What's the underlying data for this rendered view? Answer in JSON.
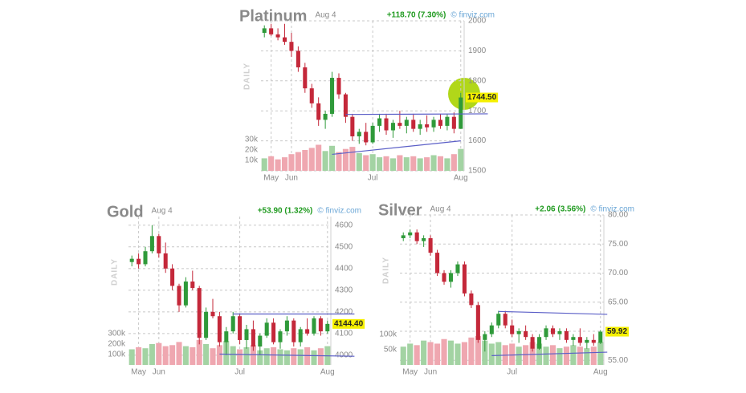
{
  "chart_data": [
    {
      "type": "candlestick",
      "title": "Platinum",
      "date": "Aug 4",
      "change": "+118.70 (7.30%)",
      "source": "© finviz.com",
      "axis_label": "DAILY",
      "last_price": {
        "value": 1744.5,
        "label": "1744.50"
      },
      "categories": [
        null,
        "May",
        null,
        null,
        "Jun",
        null,
        null,
        null,
        null,
        null,
        null,
        null,
        null,
        null,
        null,
        null,
        "Jul",
        null,
        null,
        null,
        null,
        null,
        null,
        null,
        null,
        null,
        null,
        null,
        null,
        "Aug"
      ],
      "open": [
        1960,
        1975,
        1955,
        1945,
        1930,
        1900,
        1845,
        1775,
        1725,
        1670,
        1690,
        1810,
        1755,
        1680,
        1615,
        1630,
        1595,
        1650,
        1675,
        1635,
        1660,
        1650,
        1670,
        1640,
        1655,
        1645,
        1670,
        1650,
        1680,
        1640
      ],
      "high": [
        1985,
        1990,
        1975,
        1990,
        1960,
        1915,
        1860,
        1790,
        1745,
        1700,
        1830,
        1825,
        1760,
        1690,
        1640,
        1660,
        1660,
        1690,
        1690,
        1670,
        1700,
        1680,
        1690,
        1670,
        1685,
        1680,
        1690,
        1690,
        1695,
        1760
      ],
      "low": [
        1945,
        1950,
        1935,
        1920,
        1880,
        1830,
        1760,
        1710,
        1650,
        1640,
        1680,
        1740,
        1660,
        1600,
        1590,
        1585,
        1590,
        1630,
        1620,
        1610,
        1640,
        1625,
        1630,
        1620,
        1630,
        1630,
        1640,
        1635,
        1625,
        1640
      ],
      "close": [
        1975,
        1955,
        1945,
        1930,
        1900,
        1845,
        1775,
        1725,
        1670,
        1690,
        1810,
        1755,
        1680,
        1615,
        1630,
        1595,
        1650,
        1675,
        1635,
        1660,
        1650,
        1670,
        1640,
        1655,
        1645,
        1670,
        1650,
        1680,
        1640,
        1744.5
      ],
      "volume": [
        12000,
        14000,
        11000,
        13000,
        16000,
        18000,
        20000,
        22000,
        25000,
        19000,
        24000,
        18000,
        21000,
        23000,
        17000,
        15000,
        16000,
        13000,
        14000,
        12000,
        15000,
        13000,
        14000,
        12000,
        13000,
        15000,
        14000,
        12000,
        16000,
        21000
      ],
      "ylim": [
        1500,
        2000
      ],
      "yticks": [
        1500,
        1600,
        1700,
        1800,
        1900,
        2000
      ],
      "vlim": [
        0,
        40000
      ],
      "vticks": [
        {
          "value": 10000,
          "label": "10k"
        },
        {
          "value": 20000,
          "label": "20k"
        },
        {
          "value": 30000,
          "label": "30k"
        }
      ],
      "trendlines": [
        {
          "x": [
            12,
            33
          ],
          "y": [
            1688,
            1690
          ]
        },
        {
          "x": [
            10,
            29
          ],
          "y": [
            1555,
            1600
          ]
        }
      ],
      "up_color": "#2f9a3a",
      "down_color": "#c4283a",
      "volume_up_color": "#a3d3a3",
      "volume_down_color": "#efa7b0",
      "trendline_color": "#5b5fc7",
      "grid": true
    },
    {
      "type": "candlestick",
      "title": "Gold",
      "date": "Aug 4",
      "change": "+53.90 (1.32%)",
      "source": "© finviz.com",
      "axis_label": "DAILY",
      "last_price": {
        "value": 4144.4,
        "label": "4144.40"
      },
      "categories": [
        null,
        "May",
        null,
        null,
        "Jun",
        null,
        null,
        null,
        null,
        null,
        null,
        null,
        null,
        null,
        null,
        null,
        "Jul",
        null,
        null,
        null,
        null,
        null,
        null,
        null,
        null,
        null,
        null,
        null,
        null,
        "Aug"
      ],
      "open": [
        4430,
        4445,
        4420,
        4480,
        4550,
        4470,
        4400,
        4320,
        4230,
        4340,
        4310,
        4080,
        4200,
        4180,
        4060,
        4110,
        4180,
        4070,
        4120,
        4040,
        4090,
        4150,
        4060,
        4110,
        4160,
        4060,
        4120,
        4100,
        4170,
        4110
      ],
      "high": [
        4460,
        4470,
        4500,
        4600,
        4560,
        4520,
        4420,
        4330,
        4360,
        4390,
        4320,
        4220,
        4260,
        4200,
        4130,
        4200,
        4190,
        4140,
        4160,
        4100,
        4170,
        4170,
        4120,
        4180,
        4170,
        4130,
        4170,
        4180,
        4180,
        4160
      ],
      "low": [
        4410,
        4400,
        4410,
        4470,
        4450,
        4380,
        4300,
        4200,
        4220,
        4300,
        4050,
        4070,
        4170,
        4040,
        4000,
        4100,
        4050,
        4030,
        4020,
        4000,
        4080,
        4050,
        4030,
        4090,
        4040,
        4040,
        4090,
        4090,
        4090,
        4100
      ],
      "close": [
        4445,
        4420,
        4480,
        4550,
        4470,
        4400,
        4320,
        4230,
        4340,
        4310,
        4080,
        4200,
        4180,
        4060,
        4110,
        4180,
        4070,
        4120,
        4040,
        4090,
        4150,
        4060,
        4110,
        4160,
        4060,
        4120,
        4100,
        4170,
        4110,
        4144.4
      ],
      "volume": [
        150000,
        170000,
        160000,
        200000,
        210000,
        180000,
        190000,
        220000,
        180000,
        170000,
        240000,
        200000,
        160000,
        190000,
        230000,
        180000,
        150000,
        170000,
        190000,
        140000,
        160000,
        170000,
        150000,
        140000,
        160000,
        150000,
        170000,
        140000,
        160000,
        180000
      ],
      "ylim": [
        3955,
        4640
      ],
      "yticks": [
        4000,
        4100,
        4200,
        4300,
        4400,
        4500,
        4600
      ],
      "vlim": [
        0,
        400000
      ],
      "vticks": [
        {
          "value": 100000,
          "label": "100k"
        },
        {
          "value": 200000,
          "label": "200k"
        },
        {
          "value": 300000,
          "label": "300k"
        }
      ],
      "trendlines": [
        {
          "x": [
            15,
            33
          ],
          "y": [
            4190,
            4190
          ]
        },
        {
          "x": [
            13,
            33
          ],
          "y": [
            4005,
            3995
          ]
        }
      ],
      "up_color": "#2f9a3a",
      "down_color": "#c4283a",
      "volume_up_color": "#a3d3a3",
      "volume_down_color": "#efa7b0",
      "trendline_color": "#5b5fc7",
      "grid": true
    },
    {
      "type": "candlestick",
      "title": "Silver",
      "date": "Aug 4",
      "change": "+2.06 (3.56%)",
      "source": "© finviz.com",
      "axis_label": "DAILY",
      "last_price": {
        "value": 59.92,
        "label": "59.92"
      },
      "categories": [
        null,
        "May",
        null,
        null,
        "Jun",
        null,
        null,
        null,
        null,
        null,
        null,
        null,
        null,
        null,
        null,
        null,
        "Jul",
        null,
        null,
        null,
        null,
        null,
        null,
        null,
        null,
        null,
        null,
        null,
        null,
        "Aug"
      ],
      "open": [
        76.0,
        76.5,
        77.0,
        75.5,
        76.0,
        73.5,
        70.0,
        68.5,
        70.0,
        71.5,
        66.5,
        64.5,
        58.5,
        59.5,
        61.0,
        63.0,
        61.0,
        59.5,
        60.0,
        59.0,
        57.0,
        59.0,
        60.5,
        59.5,
        60.0,
        58.5,
        59.0,
        58.0,
        58.5,
        58.0
      ],
      "high": [
        77.0,
        77.5,
        77.5,
        76.5,
        76.5,
        74.0,
        70.5,
        70.5,
        72.0,
        72.0,
        67.0,
        65.0,
        60.0,
        61.5,
        63.5,
        63.5,
        62.0,
        60.5,
        61.0,
        59.5,
        59.5,
        61.0,
        61.0,
        60.5,
        60.5,
        59.5,
        60.5,
        59.0,
        59.5,
        60.2
      ],
      "low": [
        75.5,
        76.0,
        75.0,
        74.5,
        73.0,
        69.5,
        68.0,
        67.5,
        69.5,
        66.0,
        64.0,
        58.0,
        56.5,
        59.0,
        60.5,
        60.5,
        59.0,
        58.0,
        58.5,
        56.5,
        56.8,
        58.5,
        59.0,
        58.5,
        58.0,
        57.5,
        57.5,
        57.0,
        57.5,
        57.8
      ],
      "close": [
        76.5,
        77.0,
        75.5,
        76.0,
        73.5,
        70.0,
        68.5,
        70.0,
        71.5,
        66.5,
        64.5,
        58.5,
        59.5,
        61.0,
        63.0,
        61.0,
        59.5,
        60.0,
        59.0,
        57.0,
        59.0,
        60.5,
        59.5,
        60.0,
        58.5,
        59.0,
        58.0,
        58.5,
        58.0,
        59.92
      ],
      "volume": [
        60000,
        70000,
        65000,
        80000,
        75000,
        70000,
        85000,
        80000,
        70000,
        75000,
        90000,
        95000,
        80000,
        70000,
        75000,
        65000,
        70000,
        60000,
        65000,
        75000,
        70000,
        60000,
        65000,
        55000,
        60000,
        65000,
        60000,
        55000,
        60000,
        75000
      ],
      "ylim": [
        54.2,
        80
      ],
      "yticks": [
        {
          "value": 55,
          "label": "55.00"
        },
        {
          "value": 60,
          "label": "60.00"
        },
        {
          "value": 65,
          "label": "65.00"
        },
        {
          "value": 70,
          "label": "70.00"
        },
        {
          "value": 75,
          "label": "75.00"
        },
        {
          "value": 80,
          "label": "80.00"
        }
      ],
      "vlim": [
        0,
        137000
      ],
      "vticks": [
        {
          "value": 50000,
          "label": "50k"
        },
        {
          "value": 100000,
          "label": "100k"
        }
      ],
      "trendlines": [
        {
          "x": [
            14,
            30
          ],
          "y": [
            63.4,
            62.9
          ]
        },
        {
          "x": [
            13,
            30
          ],
          "y": [
            55.8,
            56.4
          ]
        }
      ],
      "up_color": "#2f9a3a",
      "down_color": "#c4283a",
      "volume_up_color": "#a3d3a3",
      "volume_down_color": "#efa7b0",
      "trendline_color": "#5b5fc7",
      "grid": true
    }
  ]
}
